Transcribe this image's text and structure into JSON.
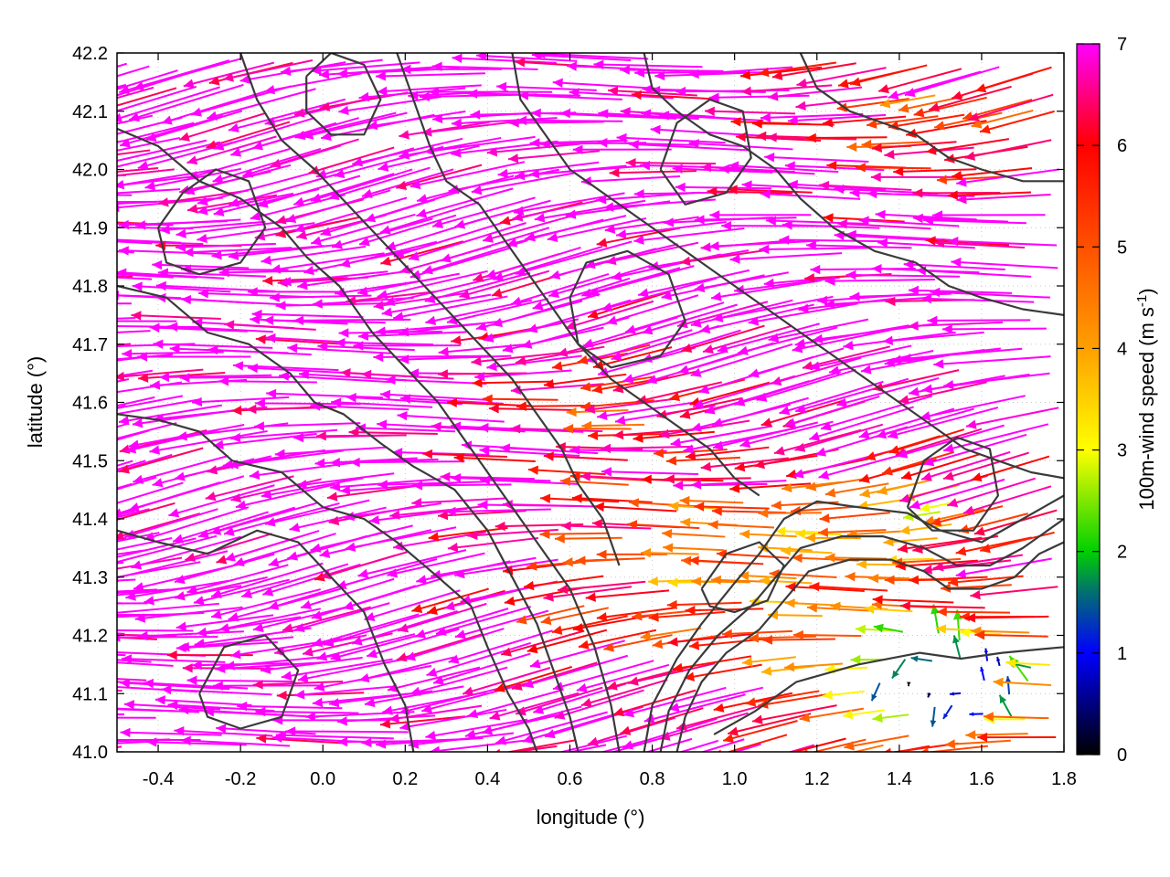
{
  "chart_data": {
    "type": "vector-field",
    "xlabel": "longitude (°)",
    "ylabel": "latitude (°)",
    "xlim": [
      -0.5,
      1.8
    ],
    "ylim": [
      41.0,
      42.2
    ],
    "x_ticks": [
      -0.4,
      -0.2,
      0.0,
      0.2,
      0.4,
      0.6,
      0.8,
      1.0,
      1.2,
      1.4,
      1.6,
      1.8
    ],
    "x_tick_labels": [
      "-0.4",
      "-0.2",
      "0.0",
      "0.2",
      "0.4",
      "0.6",
      "0.8",
      "1.0",
      "1.2",
      "1.4",
      "1.6",
      "1.8"
    ],
    "y_ticks": [
      41.0,
      41.1,
      41.2,
      41.3,
      41.4,
      41.5,
      41.6,
      41.7,
      41.8,
      41.9,
      42.0,
      42.1,
      42.2
    ],
    "y_tick_labels": [
      "41.0",
      "41.1",
      "41.2",
      "41.3",
      "41.4",
      "41.5",
      "41.6",
      "41.7",
      "41.8",
      "41.9",
      "42.0",
      "42.1",
      "42.2"
    ],
    "grid": true,
    "colorbar": {
      "label_main": "100m-wind speed (m s",
      "label_sup": "-1",
      "label_end": ")",
      "range": [
        0,
        7
      ],
      "ticks": [
        0,
        1,
        2,
        3,
        4,
        5,
        6,
        7
      ],
      "tick_labels": [
        "0",
        "1",
        "2",
        "3",
        "4",
        "5",
        "6",
        "7"
      ],
      "colormap": [
        {
          "v": 0,
          "color": "#000000"
        },
        {
          "v": 1,
          "color": "#0000ff"
        },
        {
          "v": 1.6,
          "color": "#007070"
        },
        {
          "v": 2,
          "color": "#00d000"
        },
        {
          "v": 3,
          "color": "#ffff00"
        },
        {
          "v": 4,
          "color": "#ffa000"
        },
        {
          "v": 5,
          "color": "#ff5000"
        },
        {
          "v": 6,
          "color": "#ff0000"
        },
        {
          "v": 7,
          "color": "#ff00ff"
        }
      ]
    },
    "contour_color": "#3a3a3a",
    "contours": [
      {
        "name": "coast-contour-1",
        "points": [
          [
            0.86,
            41.0
          ],
          [
            0.88,
            41.06
          ],
          [
            0.92,
            41.12
          ],
          [
            0.98,
            41.17
          ],
          [
            1.06,
            41.21
          ],
          [
            1.12,
            41.26
          ],
          [
            1.18,
            41.31
          ],
          [
            1.28,
            41.33
          ],
          [
            1.38,
            41.33
          ],
          [
            1.46,
            41.31
          ],
          [
            1.52,
            41.28
          ],
          [
            1.6,
            41.28
          ],
          [
            1.68,
            41.3
          ],
          [
            1.74,
            41.34
          ],
          [
            1.8,
            41.36
          ]
        ]
      },
      {
        "name": "coast-contour-2",
        "points": [
          [
            0.82,
            41.0
          ],
          [
            0.84,
            41.07
          ],
          [
            0.89,
            41.14
          ],
          [
            0.96,
            41.2
          ],
          [
            1.04,
            41.25
          ],
          [
            1.1,
            41.3
          ],
          [
            1.16,
            41.35
          ],
          [
            1.26,
            41.37
          ],
          [
            1.36,
            41.37
          ],
          [
            1.46,
            41.35
          ],
          [
            1.54,
            41.32
          ],
          [
            1.62,
            41.32
          ],
          [
            1.7,
            41.35
          ],
          [
            1.8,
            41.4
          ]
        ]
      },
      {
        "name": "coast-contour-3",
        "points": [
          [
            0.78,
            41.0
          ],
          [
            0.8,
            41.08
          ],
          [
            0.86,
            41.16
          ],
          [
            0.92,
            41.22
          ],
          [
            1.0,
            41.29
          ],
          [
            1.06,
            41.34
          ],
          [
            1.12,
            41.4
          ],
          [
            1.2,
            41.43
          ],
          [
            1.3,
            41.42
          ],
          [
            1.42,
            41.41
          ],
          [
            1.5,
            41.38
          ],
          [
            1.6,
            41.36
          ],
          [
            1.7,
            41.4
          ],
          [
            1.8,
            41.44
          ]
        ]
      },
      {
        "name": "island-contour-a",
        "points": [
          [
            0.92,
            41.28
          ],
          [
            0.98,
            41.34
          ],
          [
            1.06,
            41.36
          ],
          [
            1.12,
            41.32
          ],
          [
            1.08,
            41.26
          ],
          [
            1.0,
            41.24
          ],
          [
            0.94,
            41.25
          ],
          [
            0.92,
            41.28
          ]
        ]
      },
      {
        "name": "south-contour",
        "points": [
          [
            0.95,
            41.03
          ],
          [
            1.05,
            41.07
          ],
          [
            1.15,
            41.12
          ],
          [
            1.3,
            41.15
          ],
          [
            1.45,
            41.17
          ],
          [
            1.55,
            41.16
          ],
          [
            1.65,
            41.17
          ],
          [
            1.8,
            41.18
          ]
        ]
      },
      {
        "name": "terrain-contour-1",
        "points": [
          [
            -0.5,
            41.58
          ],
          [
            -0.4,
            41.57
          ],
          [
            -0.3,
            41.55
          ],
          [
            -0.22,
            41.5
          ],
          [
            -0.1,
            41.48
          ],
          [
            0.0,
            41.42
          ],
          [
            0.1,
            41.4
          ],
          [
            0.18,
            41.36
          ],
          [
            0.28,
            41.3
          ],
          [
            0.36,
            41.25
          ],
          [
            0.4,
            41.18
          ],
          [
            0.45,
            41.1
          ],
          [
            0.5,
            41.04
          ],
          [
            0.52,
            41.0
          ]
        ]
      },
      {
        "name": "terrain-contour-2",
        "points": [
          [
            -0.5,
            41.38
          ],
          [
            -0.4,
            41.36
          ],
          [
            -0.28,
            41.34
          ],
          [
            -0.16,
            41.38
          ],
          [
            -0.06,
            41.36
          ],
          [
            0.02,
            41.3
          ],
          [
            0.1,
            41.24
          ],
          [
            0.15,
            41.15
          ],
          [
            0.2,
            41.08
          ],
          [
            0.22,
            41.0
          ]
        ]
      },
      {
        "name": "terrain-contour-3",
        "points": [
          [
            -0.5,
            41.8
          ],
          [
            -0.38,
            41.78
          ],
          [
            -0.28,
            41.72
          ],
          [
            -0.18,
            41.7
          ],
          [
            -0.08,
            41.65
          ],
          [
            -0.02,
            41.6
          ],
          [
            0.05,
            41.58
          ],
          [
            0.14,
            41.53
          ],
          [
            0.22,
            41.49
          ],
          [
            0.32,
            41.45
          ],
          [
            0.4,
            41.38
          ],
          [
            0.46,
            41.3
          ],
          [
            0.52,
            41.22
          ],
          [
            0.56,
            41.14
          ],
          [
            0.6,
            41.06
          ],
          [
            0.62,
            41.0
          ]
        ]
      },
      {
        "name": "terrain-contour-4",
        "points": [
          [
            -0.5,
            42.07
          ],
          [
            -0.4,
            42.04
          ],
          [
            -0.3,
            41.98
          ],
          [
            -0.2,
            41.95
          ],
          [
            -0.1,
            41.9
          ],
          [
            -0.04,
            41.85
          ],
          [
            0.04,
            41.8
          ],
          [
            0.12,
            41.72
          ],
          [
            0.2,
            41.66
          ],
          [
            0.28,
            41.6
          ],
          [
            0.36,
            41.52
          ],
          [
            0.44,
            41.44
          ],
          [
            0.52,
            41.36
          ],
          [
            0.6,
            41.28
          ],
          [
            0.66,
            41.18
          ],
          [
            0.7,
            41.08
          ],
          [
            0.72,
            41.0
          ]
        ]
      },
      {
        "name": "terrain-contour-5",
        "points": [
          [
            -0.2,
            42.2
          ],
          [
            -0.16,
            42.12
          ],
          [
            -0.1,
            42.05
          ],
          [
            -0.02,
            42.0
          ],
          [
            0.06,
            41.94
          ],
          [
            0.14,
            41.88
          ],
          [
            0.22,
            41.82
          ],
          [
            0.3,
            41.76
          ],
          [
            0.38,
            41.7
          ],
          [
            0.46,
            41.64
          ],
          [
            0.52,
            41.58
          ],
          [
            0.58,
            41.52
          ],
          [
            0.62,
            41.46
          ],
          [
            0.68,
            41.4
          ],
          [
            0.72,
            41.32
          ]
        ]
      },
      {
        "name": "terrain-contour-6",
        "points": [
          [
            0.18,
            42.2
          ],
          [
            0.22,
            42.12
          ],
          [
            0.26,
            42.04
          ],
          [
            0.3,
            41.98
          ],
          [
            0.38,
            41.94
          ],
          [
            0.44,
            41.88
          ],
          [
            0.5,
            41.82
          ],
          [
            0.56,
            41.76
          ],
          [
            0.62,
            41.7
          ],
          [
            0.7,
            41.64
          ],
          [
            0.78,
            41.6
          ],
          [
            0.86,
            41.56
          ],
          [
            0.94,
            41.52
          ],
          [
            1.0,
            41.47
          ],
          [
            1.06,
            41.44
          ]
        ]
      },
      {
        "name": "terrain-contour-7",
        "points": [
          [
            0.46,
            42.2
          ],
          [
            0.48,
            42.12
          ],
          [
            0.54,
            42.06
          ],
          [
            0.6,
            42.0
          ],
          [
            0.68,
            41.96
          ],
          [
            0.76,
            41.92
          ],
          [
            0.84,
            41.88
          ],
          [
            0.92,
            41.84
          ],
          [
            1.0,
            41.8
          ],
          [
            1.08,
            41.76
          ],
          [
            1.16,
            41.72
          ],
          [
            1.24,
            41.68
          ],
          [
            1.32,
            41.64
          ],
          [
            1.4,
            41.6
          ],
          [
            1.48,
            41.56
          ],
          [
            1.56,
            41.52
          ],
          [
            1.64,
            41.5
          ],
          [
            1.72,
            41.48
          ],
          [
            1.8,
            41.47
          ]
        ]
      },
      {
        "name": "terrain-contour-8",
        "points": [
          [
            0.78,
            42.2
          ],
          [
            0.8,
            42.14
          ],
          [
            0.86,
            42.1
          ],
          [
            0.94,
            42.06
          ],
          [
            1.02,
            42.04
          ],
          [
            1.1,
            42.0
          ],
          [
            1.16,
            41.95
          ],
          [
            1.24,
            41.9
          ],
          [
            1.34,
            41.86
          ],
          [
            1.44,
            41.84
          ],
          [
            1.52,
            41.8
          ],
          [
            1.6,
            41.78
          ],
          [
            1.7,
            41.76
          ],
          [
            1.8,
            41.75
          ]
        ]
      },
      {
        "name": "terrain-contour-9",
        "points": [
          [
            1.16,
            42.2
          ],
          [
            1.2,
            42.14
          ],
          [
            1.28,
            42.1
          ],
          [
            1.36,
            42.08
          ],
          [
            1.44,
            42.06
          ],
          [
            1.52,
            42.02
          ],
          [
            1.6,
            42.0
          ],
          [
            1.7,
            41.98
          ],
          [
            1.8,
            41.98
          ]
        ]
      },
      {
        "name": "ridge-contour-1",
        "points": [
          [
            -0.4,
            41.9
          ],
          [
            -0.34,
            41.96
          ],
          [
            -0.26,
            42.0
          ],
          [
            -0.18,
            41.98
          ],
          [
            -0.14,
            41.9
          ],
          [
            -0.2,
            41.84
          ],
          [
            -0.3,
            41.82
          ],
          [
            -0.38,
            41.84
          ],
          [
            -0.4,
            41.9
          ]
        ]
      },
      {
        "name": "ridge-contour-2",
        "points": [
          [
            -0.04,
            42.16
          ],
          [
            0.02,
            42.2
          ],
          [
            0.1,
            42.18
          ],
          [
            0.14,
            42.12
          ],
          [
            0.1,
            42.06
          ],
          [
            0.02,
            42.06
          ],
          [
            -0.04,
            42.1
          ],
          [
            -0.04,
            42.16
          ]
        ]
      },
      {
        "name": "ridge-contour-3",
        "points": [
          [
            0.6,
            41.78
          ],
          [
            0.64,
            41.84
          ],
          [
            0.74,
            41.86
          ],
          [
            0.84,
            41.82
          ],
          [
            0.88,
            41.74
          ],
          [
            0.82,
            41.68
          ],
          [
            0.7,
            41.66
          ],
          [
            0.62,
            41.7
          ],
          [
            0.6,
            41.78
          ]
        ]
      },
      {
        "name": "ridge-contour-4",
        "points": [
          [
            1.42,
            41.42
          ],
          [
            1.46,
            41.5
          ],
          [
            1.54,
            41.54
          ],
          [
            1.62,
            41.52
          ],
          [
            1.64,
            41.44
          ],
          [
            1.58,
            41.38
          ],
          [
            1.48,
            41.38
          ],
          [
            1.42,
            41.42
          ]
        ]
      },
      {
        "name": "ridge-contour-5",
        "points": [
          [
            0.82,
            42.0
          ],
          [
            0.86,
            42.08
          ],
          [
            0.94,
            42.12
          ],
          [
            1.02,
            42.1
          ],
          [
            1.04,
            42.02
          ],
          [
            0.98,
            41.96
          ],
          [
            0.88,
            41.94
          ],
          [
            0.82,
            42.0
          ]
        ]
      },
      {
        "name": "ridge-contour-6",
        "points": [
          [
            -0.3,
            41.1
          ],
          [
            -0.24,
            41.18
          ],
          [
            -0.14,
            41.2
          ],
          [
            -0.06,
            41.14
          ],
          [
            -0.1,
            41.06
          ],
          [
            -0.2,
            41.04
          ],
          [
            -0.28,
            41.06
          ],
          [
            -0.3,
            41.1
          ]
        ]
      }
    ]
  }
}
